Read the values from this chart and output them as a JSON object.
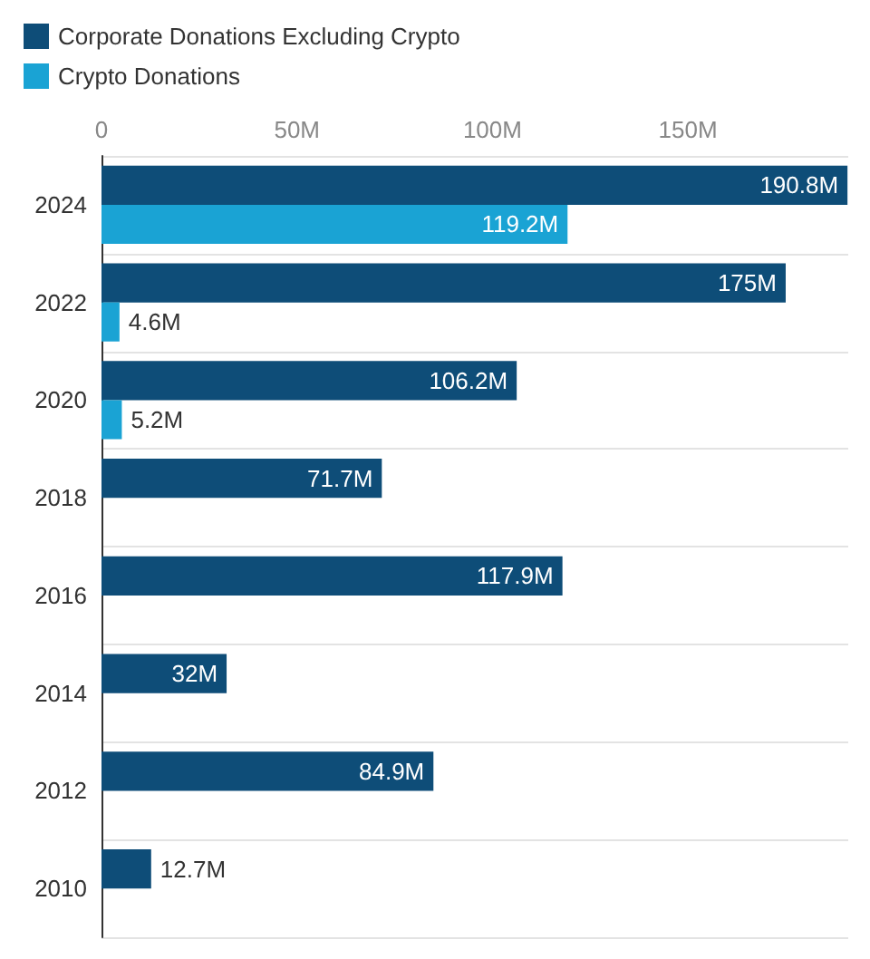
{
  "chart_data": {
    "type": "bar",
    "orientation": "horizontal",
    "categories": [
      "2024",
      "2022",
      "2020",
      "2018",
      "2016",
      "2014",
      "2012",
      "2010"
    ],
    "series": [
      {
        "name": "Corporate Donations Excluding Crypto",
        "color": "#0e4d78",
        "values": [
          190.8,
          175,
          106.2,
          71.7,
          117.9,
          32,
          84.9,
          12.7
        ],
        "value_labels": [
          "190.8M",
          "175M",
          "106.2M",
          "71.7M",
          "117.9M",
          "32M",
          "84.9M",
          "12.7M"
        ]
      },
      {
        "name": "Crypto Donations",
        "color": "#1aa3d4",
        "values": [
          119.2,
          4.6,
          5.2,
          null,
          null,
          null,
          null,
          null
        ],
        "value_labels": [
          "119.2M",
          "4.6M",
          "5.2M",
          null,
          null,
          null,
          null,
          null
        ]
      }
    ],
    "xlim": [
      0,
      191
    ],
    "xticks": [
      0,
      {
        "value": 50,
        "label": "50M"
      },
      {
        "value": 100,
        "label": "100M"
      },
      {
        "value": 150,
        "label": "150M"
      }
    ],
    "grid": "y",
    "legend": "top left"
  }
}
